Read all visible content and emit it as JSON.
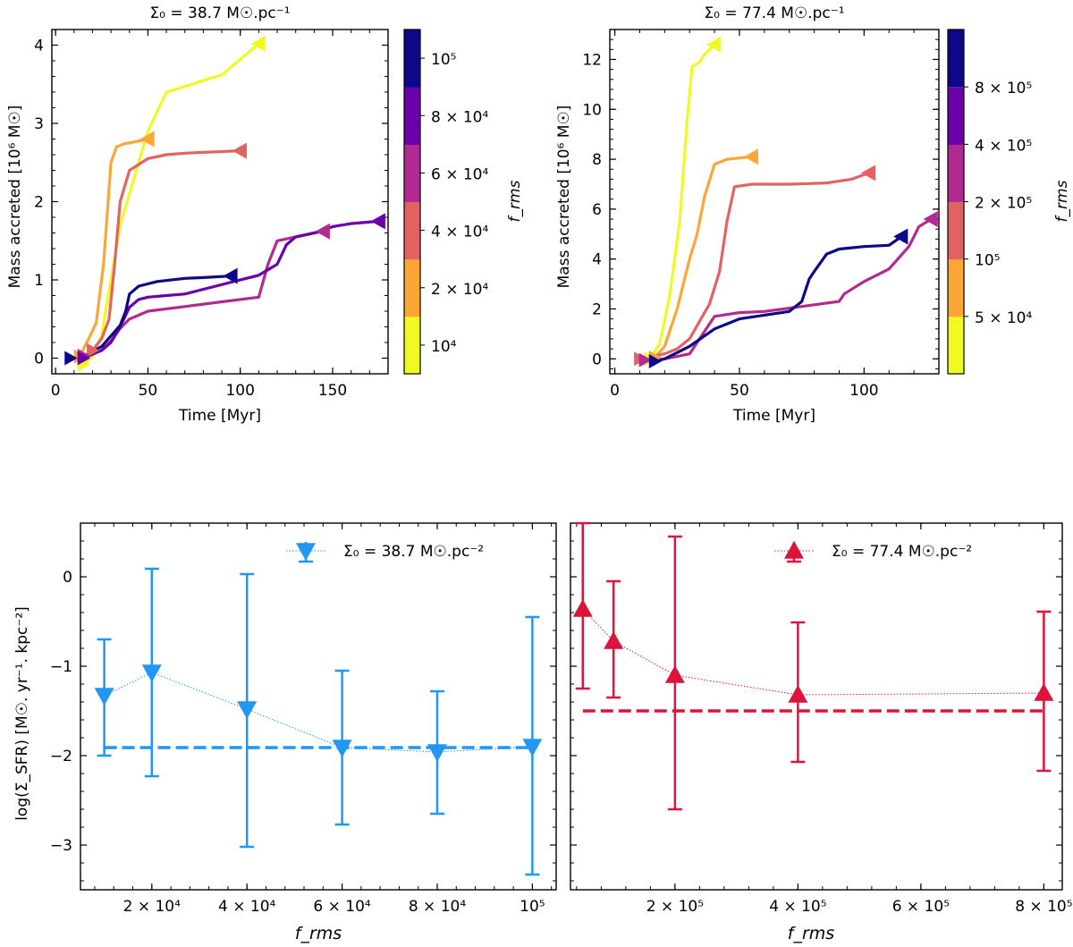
{
  "chart_data": [
    {
      "id": "top-left",
      "type": "line",
      "title": "Σ₀ = 38.7 M☉.pc⁻¹",
      "xlabel": "Time [Myr]",
      "ylabel": "Mass accreted [10⁶ M☉]",
      "xlim": [
        -2,
        180
      ],
      "ylim": [
        -0.2,
        4.2
      ],
      "xticks": [
        0,
        50,
        100,
        150
      ],
      "yticks": [
        0,
        1,
        2,
        3,
        4
      ],
      "colorbar": {
        "label": "f_rms",
        "bins": [
          {
            "label": "10⁴",
            "color": "#f0f921"
          },
          {
            "label": "2 × 10⁴",
            "color": "#fca636"
          },
          {
            "label": "4 × 10⁴",
            "color": "#e16462"
          },
          {
            "label": "6 × 10⁴",
            "color": "#b12a90"
          },
          {
            "label": "8 × 10⁴",
            "color": "#6a00a8"
          },
          {
            "label": "10⁵",
            "color": "#0d0887"
          }
        ]
      },
      "series": [
        {
          "name": "10⁴",
          "color": "#f0f921",
          "marker_start": "right",
          "marker_end": "left",
          "x": [
            15,
            20,
            25,
            30,
            35,
            40,
            50,
            60,
            70,
            80,
            90,
            100,
            110
          ],
          "y": [
            -0.08,
            0.02,
            0.3,
            1.0,
            1.7,
            2.1,
            2.9,
            3.4,
            3.47,
            3.55,
            3.62,
            3.82,
            4.02
          ]
        },
        {
          "name": "2 × 10⁴",
          "color": "#fca636",
          "marker_start": "right",
          "marker_end": "left",
          "x": [
            13,
            18,
            22,
            26,
            30,
            33,
            37,
            42,
            50
          ],
          "y": [
            0.02,
            0.25,
            0.45,
            1.2,
            2.5,
            2.7,
            2.74,
            2.76,
            2.8
          ]
        },
        {
          "name": "4 × 10⁴",
          "color": "#e16462",
          "marker_start": "right",
          "marker_end": "left",
          "x": [
            20,
            25,
            29,
            32,
            35,
            40,
            50,
            60,
            70,
            80,
            90,
            100
          ],
          "y": [
            0.1,
            0.25,
            0.5,
            1.2,
            2.0,
            2.4,
            2.55,
            2.6,
            2.62,
            2.63,
            2.64,
            2.65
          ]
        },
        {
          "name": "6 × 10⁴",
          "color": "#b12a90",
          "marker_start": "right",
          "marker_end": "left",
          "x": [
            15,
            25,
            30,
            35,
            40,
            50,
            70,
            90,
            110,
            115,
            120,
            130,
            140,
            145
          ],
          "y": [
            0.03,
            0.1,
            0.22,
            0.38,
            0.5,
            0.6,
            0.66,
            0.72,
            0.78,
            1.2,
            1.5,
            1.55,
            1.6,
            1.62
          ]
        },
        {
          "name": "8 × 10⁴",
          "color": "#6a00a8",
          "marker_start": "right",
          "marker_end": "left",
          "x": [
            15,
            25,
            30,
            35,
            40,
            45,
            50,
            60,
            70,
            80,
            95,
            110,
            120,
            125,
            130,
            140,
            150,
            160,
            175
          ],
          "y": [
            0.0,
            0.1,
            0.2,
            0.4,
            0.65,
            0.75,
            0.78,
            0.8,
            0.82,
            0.88,
            0.97,
            1.06,
            1.2,
            1.45,
            1.55,
            1.6,
            1.68,
            1.72,
            1.75
          ]
        },
        {
          "name": "10⁵",
          "color": "#0d0887",
          "marker_start": "right",
          "marker_end": "left",
          "x": [
            8,
            15,
            25,
            35,
            38,
            40,
            45,
            55,
            70,
            80,
            95
          ],
          "y": [
            0.0,
            0.02,
            0.15,
            0.42,
            0.6,
            0.82,
            0.92,
            0.98,
            1.02,
            1.03,
            1.05
          ]
        }
      ]
    },
    {
      "id": "top-right",
      "type": "line",
      "title": "Σ₀ = 77.4 M☉.pc⁻¹",
      "xlabel": "Time [Myr]",
      "ylabel": "Mass accreted [10⁶ M☉]",
      "xlim": [
        -2,
        130
      ],
      "ylim": [
        -0.6,
        13.2
      ],
      "xticks": [
        0,
        50,
        100
      ],
      "yticks": [
        0,
        2,
        4,
        6,
        8,
        10,
        12
      ],
      "colorbar": {
        "label": "f_rms",
        "bins": [
          {
            "label": "5 × 10⁴",
            "color": "#f0f921"
          },
          {
            "label": "10⁵",
            "color": "#fca636"
          },
          {
            "label": "2 × 10⁵",
            "color": "#e16462"
          },
          {
            "label": "4 × 10⁵",
            "color": "#b12a90"
          },
          {
            "label": "8 × 10⁵",
            "color": "#6a00a8"
          }
        ],
        "top_color": "#0d0887"
      },
      "series": [
        {
          "name": "5 × 10⁴",
          "color": "#f0f921",
          "marker_start": "right",
          "marker_end": "left",
          "x": [
            14,
            18,
            22,
            26,
            29,
            31,
            34,
            36,
            40
          ],
          "y": [
            0.0,
            0.6,
            2.5,
            5.5,
            9.5,
            11.7,
            11.9,
            12.2,
            12.6
          ]
        },
        {
          "name": "10⁵",
          "color": "#fca636",
          "marker_start": "right",
          "marker_end": "left",
          "x": [
            16,
            20,
            25,
            30,
            33,
            36,
            40,
            45,
            55
          ],
          "y": [
            0.05,
            0.5,
            2.0,
            4.0,
            5.0,
            6.5,
            7.8,
            8.0,
            8.1
          ]
        },
        {
          "name": "2 × 10⁵",
          "color": "#e16462",
          "marker_start": "right",
          "marker_end": "left",
          "x": [
            10,
            15,
            20,
            25,
            30,
            38,
            42,
            45,
            48,
            55,
            70,
            85,
            95,
            102
          ],
          "y": [
            0.0,
            0.1,
            0.2,
            0.4,
            0.8,
            2.2,
            3.5,
            5.5,
            6.9,
            7.0,
            7.0,
            7.05,
            7.2,
            7.45
          ]
        },
        {
          "name": "4 × 10⁵",
          "color": "#b12a90",
          "marker_start": "right",
          "marker_end": "left",
          "x": [
            12,
            20,
            30,
            40,
            50,
            60,
            75,
            90,
            92,
            100,
            110,
            118,
            122,
            127
          ],
          "y": [
            -0.05,
            0.0,
            0.2,
            1.7,
            1.85,
            1.9,
            2.1,
            2.3,
            2.6,
            3.1,
            3.6,
            4.5,
            5.3,
            5.6
          ]
        },
        {
          "name": "8 × 10⁵",
          "color": "#0d0887",
          "marker_start": "right",
          "marker_end": "left",
          "x": [
            16,
            20,
            30,
            40,
            50,
            60,
            70,
            75,
            78,
            80,
            85,
            90,
            95,
            100,
            110,
            115
          ],
          "y": [
            -0.1,
            0.0,
            0.5,
            1.2,
            1.6,
            1.75,
            1.9,
            2.3,
            3.2,
            3.5,
            4.2,
            4.4,
            4.45,
            4.5,
            4.55,
            4.9
          ]
        }
      ]
    },
    {
      "id": "bottom-left",
      "type": "scatter",
      "xlabel": "f_rms",
      "ylabel": "log(Σ_SFR) [M☉. yr⁻¹. kpc⁻²]",
      "xlim": [
        5000,
        105000
      ],
      "ylim": [
        -3.5,
        0.6
      ],
      "xticks": [
        20000,
        40000,
        60000,
        80000,
        100000
      ],
      "xticklabels": [
        "2 × 10⁴",
        "4 × 10⁴",
        "6 × 10⁴",
        "8 × 10⁴",
        "10⁵"
      ],
      "yticks": [
        -3,
        -2,
        -1,
        0
      ],
      "legend": {
        "label": "Σ₀ = 38.7 M☉.pc⁻²",
        "position": "top-right",
        "marker": "down-triangle"
      },
      "color": "#2196f3",
      "x": [
        10000,
        20000,
        40000,
        60000,
        80000,
        100000
      ],
      "y": [
        -1.33,
        -1.07,
        -1.48,
        -1.91,
        -1.96,
        -1.9
      ],
      "yerr_low": [
        -2.0,
        -2.23,
        -3.02,
        -2.77,
        -2.65,
        -3.33
      ],
      "yerr_high": [
        -0.7,
        0.09,
        0.03,
        -1.05,
        -1.28,
        -0.45
      ],
      "reference_line": -1.91
    },
    {
      "id": "bottom-right",
      "type": "scatter",
      "xlabel": "f_rms",
      "ylabel": "",
      "xlim": [
        30000,
        830000
      ],
      "ylim": [
        -3.5,
        0.6
      ],
      "xticks": [
        200000,
        400000,
        600000,
        800000
      ],
      "xticklabels": [
        "2 × 10⁵",
        "4 × 10⁵",
        "6 × 10⁵",
        "8 × 10⁵"
      ],
      "yticks": [
        -3,
        -2,
        -1,
        0
      ],
      "legend": {
        "label": "Σ₀ = 77.4 M☉.pc⁻²",
        "position": "top-right",
        "marker": "up-triangle"
      },
      "color": "#dc143c",
      "x": [
        50000,
        100000,
        200000,
        400000,
        800000
      ],
      "y": [
        -0.36,
        -0.72,
        -1.1,
        -1.32,
        -1.3
      ],
      "yerr_low": [
        -1.25,
        -1.35,
        -2.6,
        -2.07,
        -2.17
      ],
      "yerr_high": [
        0.6,
        -0.05,
        0.45,
        -0.51,
        -0.39
      ],
      "reference_line": -1.5
    }
  ]
}
